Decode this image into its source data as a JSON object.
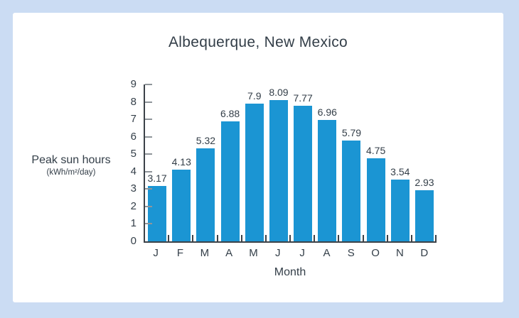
{
  "chart": {
    "title": "Albequerque, New Mexico",
    "ylabel_line1": "Peak sun hours",
    "ylabel_line2": "(kWh/m²/day)",
    "xlabel": "Month"
  },
  "chart_data": {
    "type": "bar",
    "title": "Albequerque, New Mexico",
    "categories": [
      "J",
      "F",
      "M",
      "A",
      "M",
      "J",
      "J",
      "A",
      "S",
      "O",
      "N",
      "D"
    ],
    "values": [
      3.17,
      4.13,
      5.32,
      6.88,
      7.9,
      8.09,
      7.77,
      6.96,
      5.79,
      4.75,
      3.54,
      2.93
    ],
    "value_labels": [
      "3.17",
      "4.13",
      "5.32",
      "6.88",
      "7.9",
      "8.09",
      "7.77",
      "6.96",
      "5.79",
      "4.75",
      "3.54",
      "2.93"
    ],
    "xlabel": "Month",
    "ylabel": "Peak sun hours (kWh/m²/day)",
    "ylim": [
      0,
      9
    ],
    "yticks": [
      0,
      1,
      2,
      3,
      4,
      5,
      6,
      7,
      8,
      9
    ],
    "grid": false,
    "legend": false
  },
  "colors": {
    "bar": "#1b95d3",
    "frame_background": "#cbdcf3",
    "card_background": "#ffffff",
    "text": "#333e48",
    "axis": "#3c4248",
    "tick_gray": "#8f959a"
  }
}
